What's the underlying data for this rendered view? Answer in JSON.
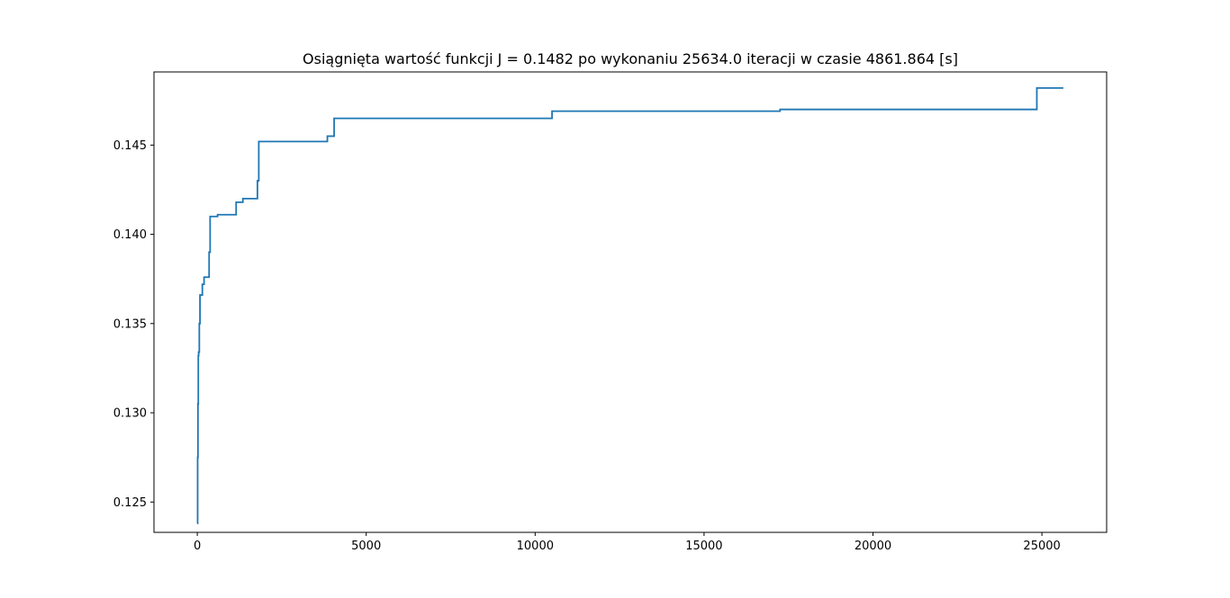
{
  "chart_data": {
    "type": "line",
    "title": "Osiągnięta wartość funkcji J = 0.1482 po wykonaniu 25634.0 iteracji w czasie 4861.864 [s]",
    "xlabel": "",
    "ylabel": "",
    "xlim": [
      -1282,
      26916
    ],
    "ylim": [
      0.1233,
      0.1491
    ],
    "x_ticks": [
      0,
      5000,
      10000,
      15000,
      20000,
      25000
    ],
    "x_tick_labels": [
      "0",
      "5000",
      "10000",
      "15000",
      "20000",
      "25000"
    ],
    "y_ticks": [
      0.125,
      0.13,
      0.135,
      0.14,
      0.145
    ],
    "y_tick_labels": [
      "0.125",
      "0.130",
      "0.135",
      "0.140",
      "0.145"
    ],
    "grid": false,
    "legend": false,
    "drawstyle": "steps-post",
    "series": [
      {
        "color": "#1f77b4",
        "x": [
          0,
          10,
          20,
          30,
          40,
          60,
          80,
          100,
          150,
          200,
          280,
          350,
          380,
          400,
          600,
          1150,
          1250,
          1350,
          1750,
          1780,
          1820,
          3800,
          3850,
          4050,
          10450,
          10500,
          17200,
          17250,
          24800,
          24850,
          25634
        ],
        "y": [
          0.1238,
          0.1275,
          0.1305,
          0.1332,
          0.1334,
          0.135,
          0.1366,
          0.1366,
          0.1372,
          0.1376,
          0.1376,
          0.139,
          0.141,
          0.141,
          0.1411,
          0.1418,
          0.1418,
          0.142,
          0.142,
          0.143,
          0.1452,
          0.1452,
          0.1455,
          0.1465,
          0.1465,
          0.1469,
          0.1469,
          0.147,
          0.147,
          0.1482,
          0.1482
        ]
      }
    ]
  },
  "colors": {
    "line": "#1f77b4",
    "axes": "#000000",
    "background": "#ffffff"
  }
}
